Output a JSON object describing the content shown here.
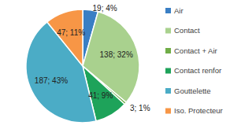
{
  "chart_data": {
    "type": "pie",
    "categories": [
      "Air",
      "Contact",
      "Contact + Air",
      "Contact renfor",
      "Gouttelette",
      "Iso. Protecteur"
    ],
    "values": [
      19,
      138,
      3,
      41,
      187,
      47
    ],
    "value_labels": [
      "19; 4%",
      "138; 32%",
      "3; 1%",
      "41; 9%",
      "187; 43%",
      "47; 11%"
    ],
    "colors": [
      "#3a7fc4",
      "#a9d18e",
      "#70ad47",
      "#1ea35a",
      "#4bacc6",
      "#f79646"
    ],
    "data_labels": true,
    "legend": "right"
  }
}
